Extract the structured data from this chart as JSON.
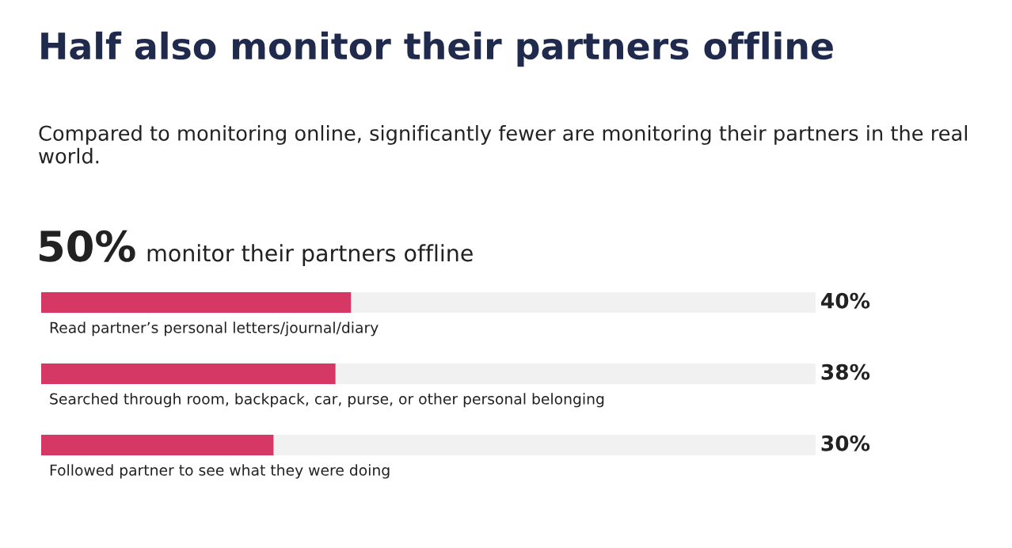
{
  "chart_data": {
    "type": "bar",
    "orientation": "horizontal",
    "title": "Half also monitor their partners offline",
    "subtitle": "Compared to monitoring online, significantly fewer are monitoring their partners in the real world.",
    "annotations": [
      "50%",
      "monitor their partners offline"
    ],
    "categories": [
      "Read partner’s personal letters/journal/diary",
      "Searched through room, backpack, car, purse, or other personal belonging",
      "Followed partner to see what they were doing"
    ],
    "values": [
      40,
      38,
      30
    ],
    "color": "#d63865",
    "xlim": [
      0,
      100
    ],
    "value_labels": [
      "40%",
      "38%",
      "30%"
    ]
  }
}
